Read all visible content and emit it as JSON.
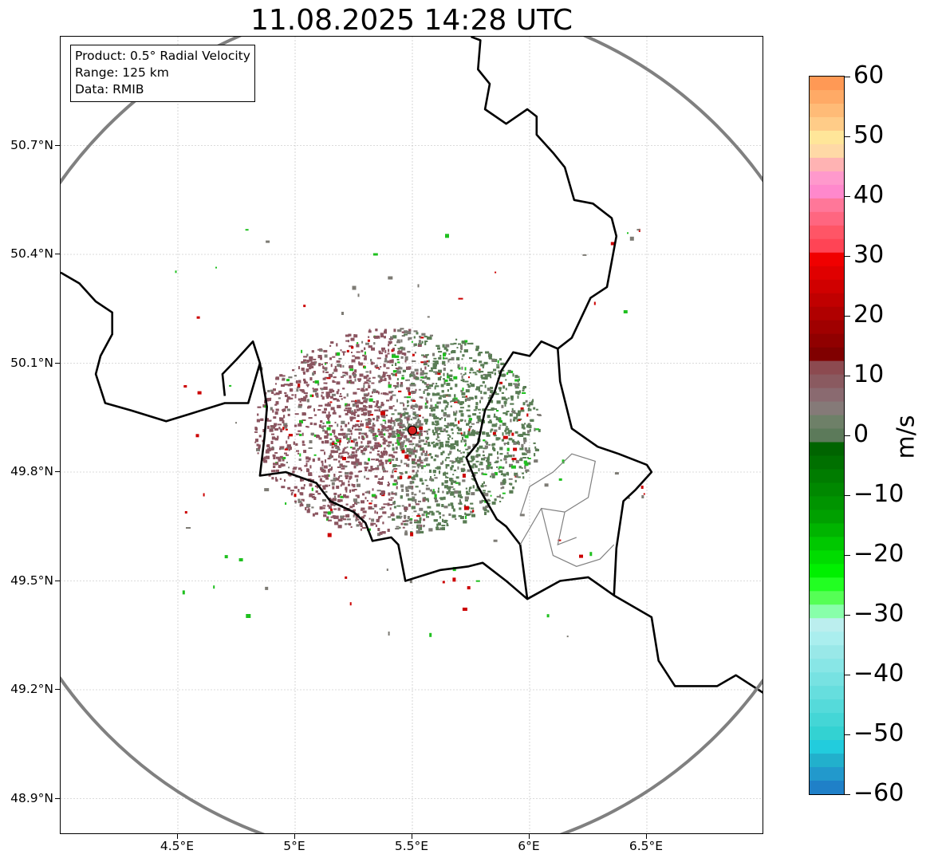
{
  "title": "11.08.2025 14:28 UTC",
  "info": {
    "product": "Product: 0.5° Radial Velocity",
    "range": "Range: 125 km",
    "data": "Data: RMIB"
  },
  "map": {
    "lon_range": [
      4.0,
      7.0
    ],
    "lat_range": [
      48.8,
      51.0
    ],
    "lat_ticks": [
      {
        "value": 50.7,
        "label": "50.7°N"
      },
      {
        "value": 50.4,
        "label": "50.4°N"
      },
      {
        "value": 50.1,
        "label": "50.1°N"
      },
      {
        "value": 49.8,
        "label": "49.8°N"
      },
      {
        "value": 49.5,
        "label": "49.5°N"
      },
      {
        "value": 49.2,
        "label": "49.2°N"
      },
      {
        "value": 48.9,
        "label": "48.9°N"
      }
    ],
    "lon_ticks": [
      {
        "value": 4.5,
        "label": "4.5°E"
      },
      {
        "value": 5.0,
        "label": "5°E"
      },
      {
        "value": 5.5,
        "label": "5.5°E"
      },
      {
        "value": 6.0,
        "label": "6°E"
      },
      {
        "value": 6.5,
        "label": "6.5°E"
      }
    ],
    "radar_site": {
      "lon": 5.5,
      "lat": 49.915
    },
    "range_ring_color": "#808080",
    "border_color": "#000000",
    "grid": true,
    "echo_colors": {
      "outbound": "#8b5560",
      "neutral": "#7d7b74",
      "inbound": "#5a7d55",
      "speckle_green": "#1fc01f",
      "speckle_red": "#cc0000"
    }
  },
  "colorbar": {
    "label": "m/s",
    "range": [
      -60,
      60
    ],
    "ticks": [
      {
        "value": 60,
        "label": "60"
      },
      {
        "value": 50,
        "label": "50"
      },
      {
        "value": 40,
        "label": "40"
      },
      {
        "value": 30,
        "label": "30"
      },
      {
        "value": 20,
        "label": "20"
      },
      {
        "value": 10,
        "label": "10"
      },
      {
        "value": 0,
        "label": "0"
      },
      {
        "value": -10,
        "label": "−10"
      },
      {
        "value": -20,
        "label": "−20"
      },
      {
        "value": -30,
        "label": "−30"
      },
      {
        "value": -40,
        "label": "−40"
      },
      {
        "value": -50,
        "label": "−50"
      },
      {
        "value": -60,
        "label": "−60"
      }
    ],
    "stops": [
      "#ff9955",
      "#ffaa66",
      "#ffbb77",
      "#ffcc88",
      "#ffe699",
      "#ffd9a6",
      "#ffb3b3",
      "#ff99cc",
      "#ff88cc",
      "#ff7799",
      "#ff6680",
      "#ff5566",
      "#ff4455",
      "#f00000",
      "#e00000",
      "#d00000",
      "#c00000",
      "#b00000",
      "#a00000",
      "#900000",
      "#800000",
      "#8c4a50",
      "#8a5a60",
      "#8a6a70",
      "#857a78",
      "#6e8068",
      "#5c7a5a",
      "#006400",
      "#007000",
      "#007c00",
      "#008800",
      "#009400",
      "#00a000",
      "#00b400",
      "#00c800",
      "#00dc00",
      "#00f000",
      "#22ff22",
      "#55ff55",
      "#88ffaa",
      "#bbeeee",
      "#aaeeee",
      "#99e8e8",
      "#88e6e6",
      "#77e2e2",
      "#66dede",
      "#55dada",
      "#44d6d6",
      "#33d2d2",
      "#22ccdd",
      "#22b0cc",
      "#2299cc",
      "#1f80c8"
    ]
  }
}
